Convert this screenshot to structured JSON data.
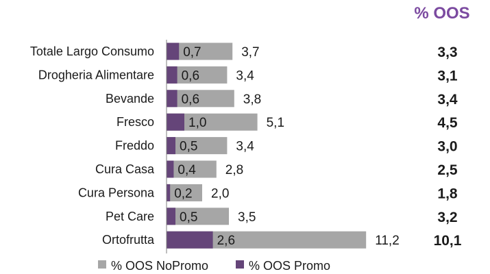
{
  "chart_data": {
    "type": "bar",
    "orientation": "horizontal",
    "stacked_overlay": true,
    "categories": [
      "Totale Largo Consumo",
      "Drogheria Alimentare",
      "Bevande",
      "Fresco",
      "Freddo",
      "Cura Casa",
      "Cura Persona",
      "Pet Care",
      "Ortofrutta"
    ],
    "series": [
      {
        "name": "% OOS NoPromo",
        "values": [
          "3,7",
          "3,4",
          "3,8",
          "5,1",
          "3,4",
          "2,8",
          "2,0",
          "3,5",
          "11,2"
        ],
        "numeric": [
          3.7,
          3.4,
          3.8,
          5.1,
          3.4,
          2.8,
          2.0,
          3.5,
          11.2
        ]
      },
      {
        "name": "% OOS Promo",
        "values": [
          "0,7",
          "0,6",
          "0,6",
          "1,0",
          "0,5",
          "0,4",
          "0,2",
          "0,5",
          "2,6"
        ],
        "numeric": [
          0.7,
          0.6,
          0.6,
          1.0,
          0.5,
          0.4,
          0.2,
          0.5,
          2.6
        ]
      }
    ],
    "totals_header": "% OOS",
    "totals": [
      "3,3",
      "3,1",
      "3,4",
      "4,5",
      "3,0",
      "2,5",
      "1,8",
      "3,2",
      "10,1"
    ],
    "xlim": [
      0,
      11.2
    ],
    "grid": false,
    "legend_position": "bottom",
    "colors": {
      "nopromo": "#a6a6a6",
      "promo": "#654579",
      "header": "#7b4aa0",
      "axis": "#7f7f7f"
    }
  }
}
